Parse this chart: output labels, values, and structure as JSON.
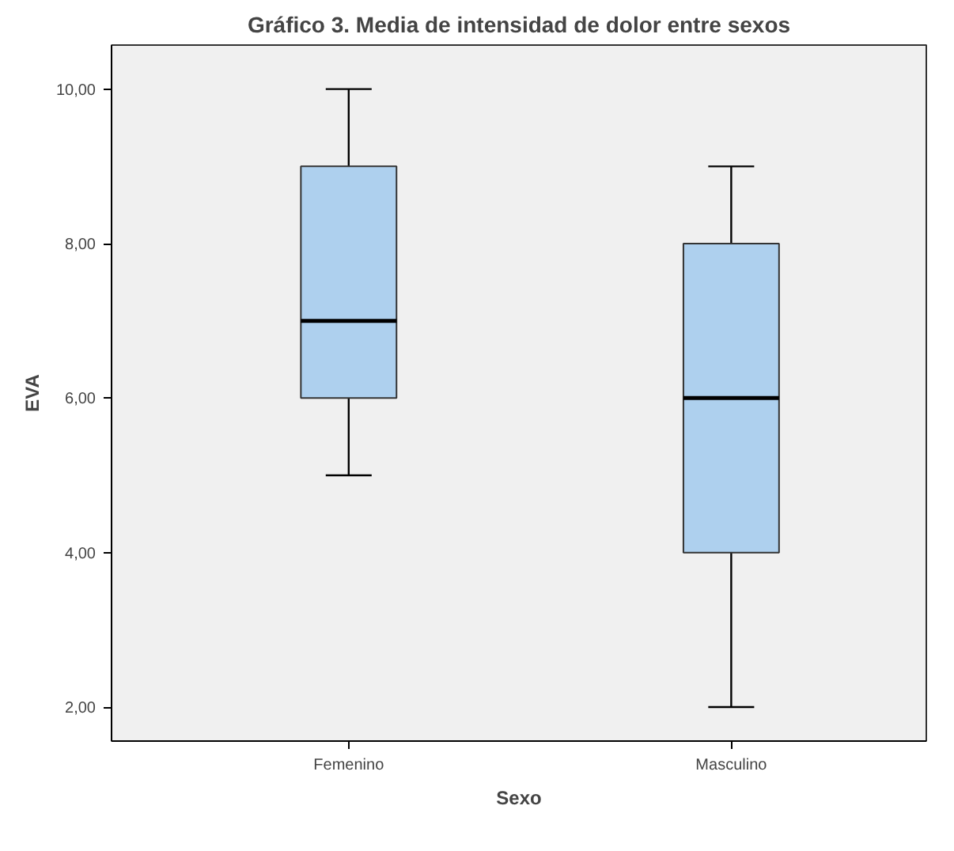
{
  "chart_data": {
    "type": "box",
    "title": "Gráfico 3. Media de intensidad de dolor entre sexos",
    "xlabel": "Sexo",
    "ylabel": "EVA",
    "categories": [
      "Femenino",
      "Masculino"
    ],
    "boxes": [
      {
        "low": 5,
        "q1": 6,
        "median": 7,
        "q3": 9,
        "high": 10
      },
      {
        "low": 2,
        "q1": 4,
        "median": 6,
        "q3": 8,
        "high": 9
      }
    ],
    "color": "#aed0ee",
    "ylim": [
      1.56,
      10.57
    ],
    "yticks": [
      {
        "value": 2,
        "label": "2,00"
      },
      {
        "value": 4,
        "label": "4,00"
      },
      {
        "value": 6,
        "label": "6,00"
      },
      {
        "value": 8,
        "label": "8,00"
      },
      {
        "value": 10,
        "label": "10,00"
      }
    ],
    "grid": false
  }
}
